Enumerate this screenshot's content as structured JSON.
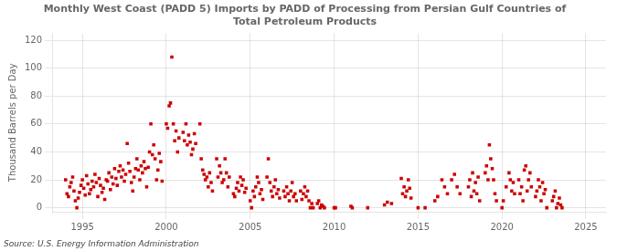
{
  "chart_data": {
    "type": "scatter",
    "title": "Monthly West Coast (PADD 5) Imports by PADD of Processing from Persian Gulf Countries of\nTotal Petroleum Products",
    "ylabel": "Thousand Barrels per Day",
    "annotations": [
      "Source: U.S. Energy Information Administration"
    ],
    "color": "#cc0000",
    "marker": "square",
    "grid": true,
    "xlim": [
      1993.2,
      2026.2
    ],
    "ylim": [
      -3,
      125
    ],
    "xticks": [
      1995,
      2000,
      2005,
      2010,
      2015,
      2020,
      2025
    ],
    "yticks": [
      0,
      20,
      40,
      60,
      80,
      100,
      120
    ],
    "x": [
      1994.0,
      1994.08,
      1994.17,
      1994.25,
      1994.33,
      1994.42,
      1994.5,
      1994.58,
      1994.67,
      1994.75,
      1994.83,
      1994.92,
      1995.0,
      1995.08,
      1995.17,
      1995.25,
      1995.33,
      1995.42,
      1995.5,
      1995.58,
      1995.67,
      1995.75,
      1995.83,
      1995.92,
      1996.0,
      1996.08,
      1996.17,
      1996.25,
      1996.33,
      1996.42,
      1996.5,
      1996.58,
      1996.67,
      1996.75,
      1996.83,
      1996.92,
      1997.0,
      1997.08,
      1997.17,
      1997.25,
      1997.33,
      1997.42,
      1997.5,
      1997.58,
      1997.67,
      1997.75,
      1997.83,
      1997.92,
      1998.0,
      1998.08,
      1998.17,
      1998.25,
      1998.33,
      1998.42,
      1998.5,
      1998.58,
      1998.67,
      1998.75,
      1998.83,
      1998.92,
      1999.0,
      1999.08,
      1999.17,
      1999.25,
      1999.33,
      1999.42,
      1999.5,
      1999.58,
      1999.67,
      1999.75,
      2000.0,
      2000.08,
      2000.17,
      2000.25,
      2000.33,
      2000.42,
      2000.5,
      2000.58,
      2000.67,
      2000.75,
      2001.0,
      2001.08,
      2001.17,
      2001.25,
      2001.33,
      2001.42,
      2001.5,
      2001.58,
      2001.67,
      2001.75,
      2002.0,
      2002.08,
      2002.17,
      2002.25,
      2002.33,
      2002.42,
      2002.5,
      2002.58,
      2002.67,
      2002.75,
      2003.0,
      2003.08,
      2003.17,
      2003.25,
      2003.33,
      2003.42,
      2003.5,
      2003.58,
      2003.67,
      2003.75,
      2004.0,
      2004.08,
      2004.17,
      2004.25,
      2004.33,
      2004.42,
      2004.5,
      2004.58,
      2004.67,
      2004.75,
      2005.0,
      2005.08,
      2005.17,
      2005.25,
      2005.33,
      2005.42,
      2005.5,
      2005.58,
      2005.67,
      2005.75,
      2006.0,
      2006.08,
      2006.17,
      2006.25,
      2006.33,
      2006.42,
      2006.5,
      2006.58,
      2006.67,
      2006.75,
      2007.0,
      2007.08,
      2007.17,
      2007.25,
      2007.33,
      2007.42,
      2007.5,
      2007.58,
      2007.67,
      2007.75,
      2008.0,
      2008.08,
      2008.17,
      2008.25,
      2008.33,
      2008.42,
      2008.5,
      2008.58,
      2008.67,
      2008.75,
      2009.0,
      2009.08,
      2009.17,
      2009.25,
      2009.33,
      2009.42,
      2010.0,
      2010.08,
      2011.0,
      2011.08,
      2012.0,
      2013.0,
      2013.17,
      2013.42,
      2014.0,
      2014.08,
      2014.17,
      2014.25,
      2014.33,
      2014.42,
      2014.5,
      2014.58,
      2015.0,
      2015.42,
      2016.0,
      2016.17,
      2016.42,
      2016.58,
      2016.75,
      2017.0,
      2017.17,
      2017.33,
      2017.5,
      2018.0,
      2018.08,
      2018.17,
      2018.25,
      2018.33,
      2018.42,
      2018.5,
      2018.58,
      2018.67,
      2019.0,
      2019.08,
      2019.17,
      2019.25,
      2019.33,
      2019.42,
      2019.5,
      2019.58,
      2019.67,
      2020.0,
      2020.08,
      2020.25,
      2020.42,
      2020.5,
      2020.58,
      2020.67,
      2020.75,
      2021.0,
      2021.08,
      2021.17,
      2021.25,
      2021.33,
      2021.42,
      2021.5,
      2021.58,
      2021.67,
      2021.75,
      2022.0,
      2022.08,
      2022.17,
      2022.25,
      2022.33,
      2022.42,
      2022.5,
      2022.58,
      2022.67,
      2023.0,
      2023.08,
      2023.17,
      2023.25,
      2023.33,
      2023.42,
      2023.5,
      2023.58
    ],
    "values": [
      20,
      10,
      8,
      15,
      18,
      22,
      12,
      5,
      0,
      7,
      11,
      16,
      20,
      14,
      9,
      23,
      17,
      10,
      13,
      19,
      15,
      24,
      18,
      8,
      21,
      16,
      11,
      14,
      6,
      20,
      19,
      25,
      13,
      22,
      17,
      28,
      21,
      16,
      26,
      30,
      22,
      27,
      19,
      24,
      46,
      32,
      26,
      18,
      12,
      22,
      28,
      35,
      27,
      20,
      30,
      25,
      33,
      28,
      15,
      29,
      40,
      60,
      38,
      45,
      35,
      20,
      27,
      39,
      33,
      19,
      60,
      57,
      73,
      75,
      108,
      60,
      48,
      55,
      40,
      50,
      54,
      48,
      60,
      45,
      52,
      47,
      38,
      42,
      53,
      46,
      60,
      35,
      27,
      24,
      20,
      22,
      15,
      25,
      18,
      12,
      35,
      22,
      30,
      25,
      18,
      20,
      35,
      25,
      15,
      22,
      10,
      8,
      14,
      18,
      12,
      22,
      16,
      20,
      11,
      14,
      5,
      0,
      12,
      8,
      15,
      22,
      18,
      10,
      13,
      6,
      22,
      35,
      18,
      12,
      8,
      15,
      20,
      10,
      13,
      7,
      12,
      8,
      15,
      10,
      5,
      12,
      18,
      8,
      10,
      5,
      12,
      6,
      10,
      15,
      8,
      12,
      5,
      0,
      3,
      0,
      3,
      5,
      0,
      2,
      1,
      0,
      0,
      0,
      1,
      0,
      0,
      2,
      4,
      3,
      21,
      10,
      15,
      8,
      12,
      20,
      14,
      7,
      0,
      0,
      5,
      8,
      20,
      15,
      10,
      20,
      24,
      15,
      10,
      15,
      20,
      8,
      25,
      12,
      18,
      10,
      22,
      5,
      25,
      30,
      20,
      45,
      35,
      28,
      20,
      10,
      5,
      0,
      5,
      15,
      25,
      20,
      12,
      18,
      10,
      20,
      10,
      15,
      5,
      27,
      30,
      12,
      20,
      25,
      15,
      8,
      12,
      20,
      15,
      5,
      18,
      10,
      13,
      0,
      5,
      8,
      12,
      0,
      3,
      7,
      2,
      0
    ]
  }
}
